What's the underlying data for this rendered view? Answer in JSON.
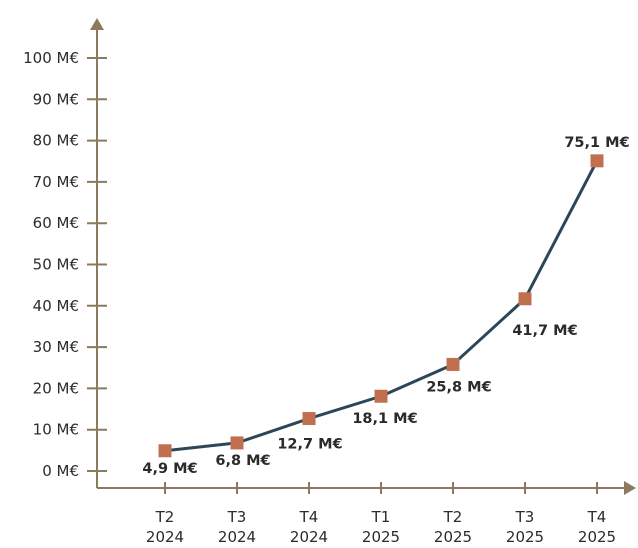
{
  "chart_data": {
    "type": "line",
    "title": "",
    "xlabel": "",
    "ylabel": "",
    "categories": [
      [
        "T2",
        "2024"
      ],
      [
        "T3",
        "2024"
      ],
      [
        "T4",
        "2024"
      ],
      [
        "T1",
        "2025"
      ],
      [
        "T2",
        "2025"
      ],
      [
        "T3",
        "2025"
      ],
      [
        "T4",
        "2025"
      ]
    ],
    "series": [
      {
        "values": [
          4.9,
          6.8,
          12.7,
          18.1,
          25.8,
          41.7,
          75.1
        ],
        "data_labels": [
          "4,9 M€",
          "6,8 M€",
          "12,7 M€",
          "18,1 M€",
          "25,8 M€",
          "41,7 M€",
          "75,1 M€"
        ]
      }
    ],
    "yticks": [
      0,
      10,
      20,
      30,
      40,
      50,
      60,
      70,
      80,
      90,
      100
    ],
    "ytick_labels": [
      "0 M€",
      "10 M€",
      "20 M€",
      "30 M€",
      "40 M€",
      "50 M€",
      "60 M€",
      "70 M€",
      "80 M€",
      "90 M€",
      "100 M€"
    ],
    "ylim": [
      0,
      100
    ],
    "grid": false,
    "legend": "none",
    "colors": {
      "line": "#2d4657",
      "marker": "#c0704f",
      "axis": "#8b7a5e",
      "text": "#2b2b2b"
    }
  }
}
